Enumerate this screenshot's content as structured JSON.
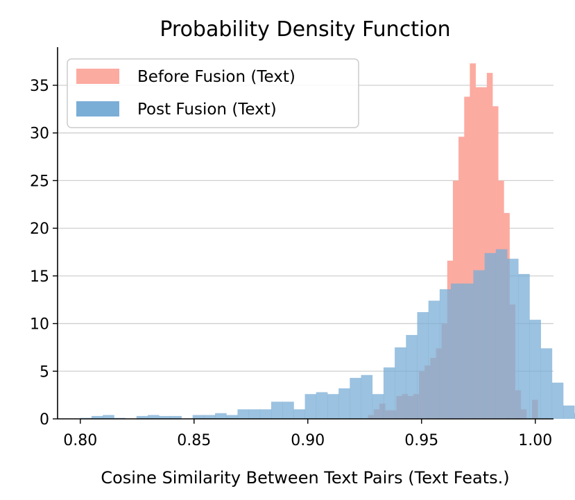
{
  "chart_data": {
    "type": "histogram",
    "title": "Probability Density Function",
    "xlabel": "Cosine Similarity Between Text Pairs (Text Feats.)",
    "ylabel": "",
    "xlim": [
      0.79,
      1.008
    ],
    "ylim": [
      0,
      39
    ],
    "x_ticks": [
      "0.80",
      "0.85",
      "0.90",
      "0.95",
      "1.00"
    ],
    "x_tick_values": [
      0.8,
      0.85,
      0.9,
      0.95,
      1.0
    ],
    "y_ticks": [
      "0",
      "5",
      "10",
      "15",
      "20",
      "25",
      "30",
      "35"
    ],
    "y_tick_values": [
      0,
      5,
      10,
      15,
      20,
      25,
      30,
      35
    ],
    "grid": "horizontal",
    "legend_position": "top-left",
    "series": [
      {
        "name": "Post Fusion (Text)",
        "color": "#7aaed6",
        "bin_start": 0.8,
        "bin_width": 0.004936,
        "values": [
          0.1,
          0.3,
          0.4,
          0.1,
          0.0,
          0.3,
          0.4,
          0.3,
          0.3,
          0.0,
          0.4,
          0.4,
          0.6,
          0.4,
          1.0,
          1.0,
          1.0,
          1.8,
          1.8,
          1.0,
          2.6,
          2.8,
          2.6,
          3.2,
          4.3,
          4.6,
          2.6,
          5.4,
          7.5,
          8.8,
          11.2,
          12.4,
          13.6,
          14.2,
          14.2,
          15.6,
          17.4,
          17.8,
          16.8,
          15.2,
          10.4,
          7.4,
          3.8,
          1.4,
          0.6
        ]
      },
      {
        "name": "Before Fusion (Text)",
        "color": "#fcaba1",
        "bin_start": 0.9265,
        "bin_width": 0.002485,
        "values": [
          0.4,
          1.0,
          1.6,
          0.9,
          0.9,
          2.4,
          2.6,
          2.4,
          2.6,
          5.0,
          5.6,
          6.4,
          7.4,
          10.0,
          16.6,
          25.0,
          29.6,
          33.8,
          37.3,
          34.8,
          34.8,
          36.3,
          32.8,
          25.0,
          21.6,
          12.0,
          3.0,
          1.0,
          0.0,
          2.0
        ]
      }
    ]
  }
}
